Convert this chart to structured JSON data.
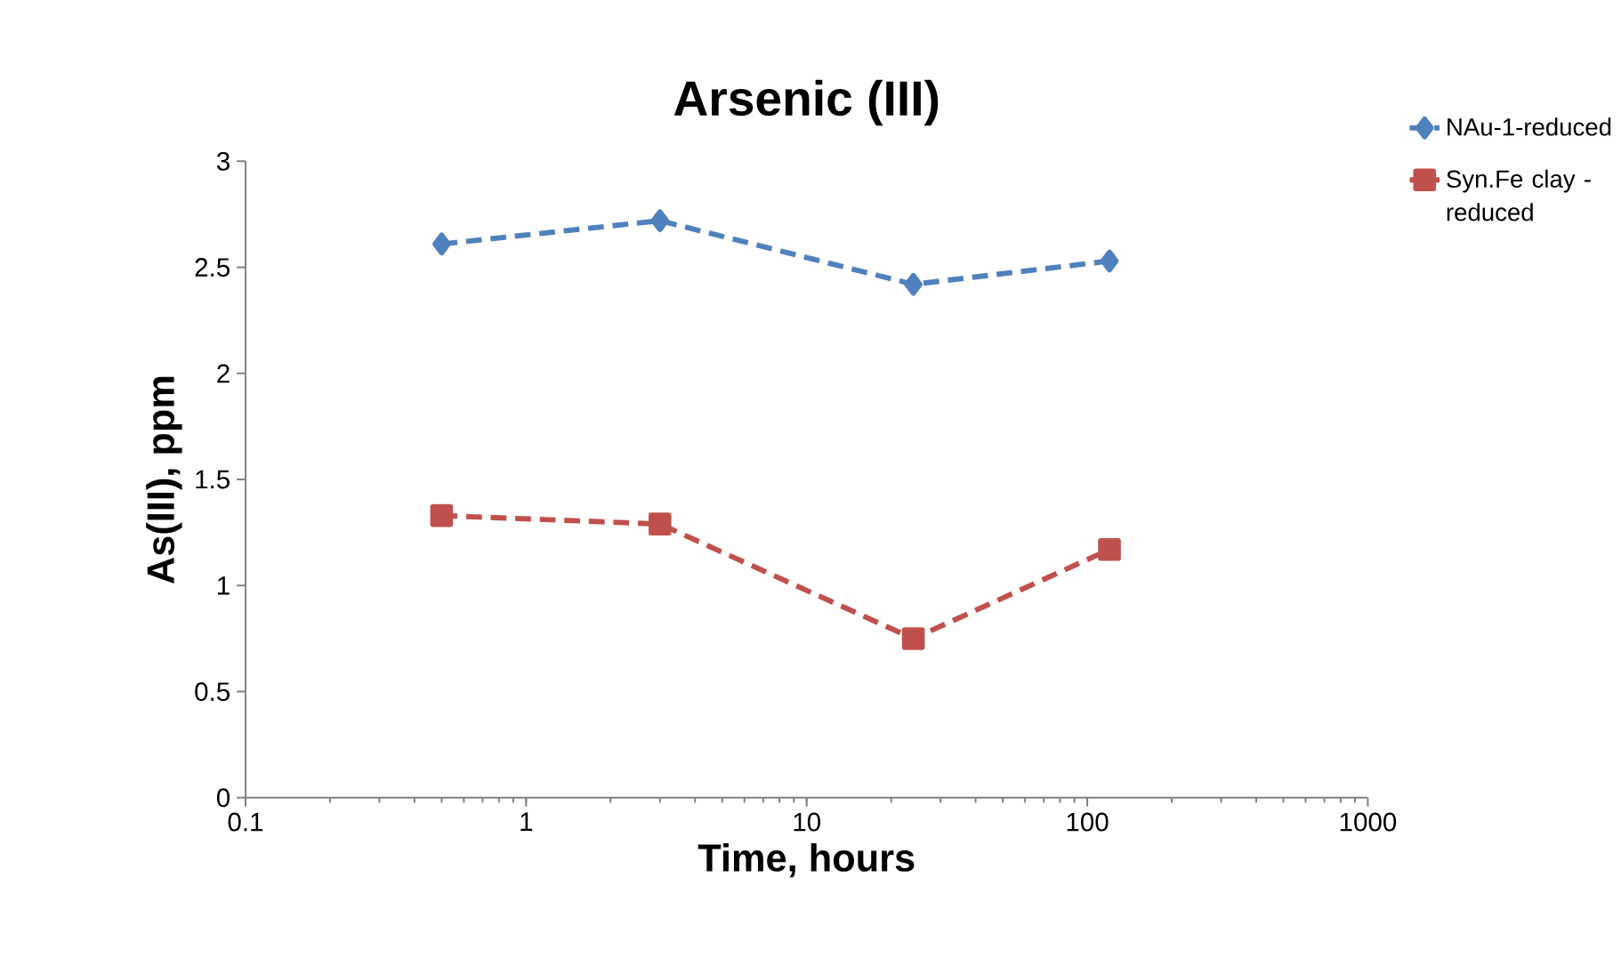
{
  "chart_data": {
    "type": "line",
    "title": "Arsenic (III)",
    "xlabel": "Time, hours",
    "ylabel": "As(III), ppm",
    "x": [
      0.5,
      3,
      24,
      120
    ],
    "series": [
      {
        "name": "NAu-1-reduced",
        "color": "#4f81bd",
        "marker": "diamond",
        "values": [
          2.61,
          2.72,
          2.42,
          2.53
        ]
      },
      {
        "name": "Syn.Fe clay - reduced",
        "color": "#c0504d",
        "marker": "square",
        "values": [
          1.33,
          1.29,
          0.75,
          1.17
        ]
      }
    ],
    "log": "x",
    "xlim": [
      0.1,
      1000
    ],
    "xticks": [
      0.1,
      1,
      10,
      100,
      1000
    ],
    "ylim": [
      0,
      3
    ],
    "yticks": [
      0,
      0.5,
      1,
      1.5,
      2,
      2.5,
      3
    ],
    "grid": false,
    "legend": "top right",
    "line_style": "dashed"
  }
}
